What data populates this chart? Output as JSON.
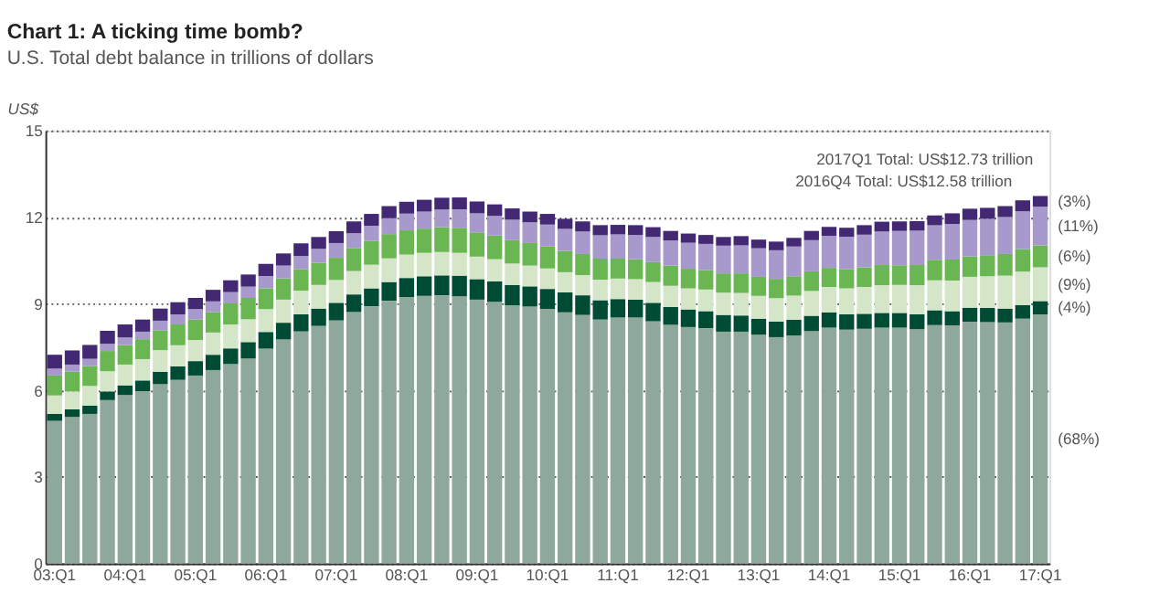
{
  "chart_data": {
    "type": "bar",
    "stacked": true,
    "title": "Chart 1: A ticking time bomb?",
    "subtitle": "U.S. Total debt balance in trillions of dollars",
    "ylabel": "US$",
    "categories": [
      "03:Q1",
      null,
      null,
      null,
      "04:Q1",
      null,
      null,
      null,
      "05:Q1",
      null,
      null,
      null,
      "06:Q1",
      null,
      null,
      null,
      "07:Q1",
      null,
      null,
      null,
      "08:Q1",
      null,
      null,
      null,
      "09:Q1",
      null,
      null,
      null,
      "10:Q1",
      null,
      null,
      null,
      "11:Q1",
      null,
      null,
      null,
      "12:Q1",
      null,
      null,
      null,
      "13:Q1",
      null,
      null,
      null,
      "14:Q1",
      null,
      null,
      null,
      "15:Q1",
      null,
      null,
      null,
      "16:Q1",
      null,
      null,
      null,
      "17:Q1"
    ],
    "series": [
      {
        "color": "#8fa89c",
        "values": [
          4.94,
          5.08,
          5.18,
          5.66,
          5.84,
          5.97,
          6.21,
          6.36,
          6.51,
          6.7,
          6.91,
          7.1,
          7.44,
          7.76,
          8.04,
          8.23,
          8.42,
          8.71,
          8.91,
          9.1,
          9.23,
          9.27,
          9.29,
          9.26,
          9.14,
          9.06,
          8.94,
          8.9,
          8.82,
          8.7,
          8.61,
          8.45,
          8.52,
          8.52,
          8.39,
          8.27,
          8.19,
          8.15,
          8.03,
          8.03,
          7.93,
          7.84,
          7.9,
          8.05,
          8.17,
          8.1,
          8.13,
          8.17,
          8.17,
          8.12,
          8.26,
          8.25,
          8.37,
          8.36,
          8.35,
          8.48,
          8.63
        ]
      },
      {
        "color": "#004b34",
        "values": [
          0.24,
          0.26,
          0.29,
          0.3,
          0.33,
          0.37,
          0.43,
          0.47,
          0.5,
          0.53,
          0.54,
          0.57,
          0.58,
          0.58,
          0.59,
          0.6,
          0.61,
          0.61,
          0.62,
          0.65,
          0.66,
          0.68,
          0.69,
          0.71,
          0.71,
          0.71,
          0.71,
          0.7,
          0.69,
          0.69,
          0.68,
          0.67,
          0.64,
          0.62,
          0.64,
          0.62,
          0.61,
          0.59,
          0.58,
          0.56,
          0.55,
          0.54,
          0.54,
          0.53,
          0.53,
          0.53,
          0.52,
          0.51,
          0.51,
          0.51,
          0.51,
          0.49,
          0.49,
          0.49,
          0.48,
          0.47,
          0.46
        ]
      },
      {
        "color": "#d5e6c8",
        "values": [
          0.64,
          0.62,
          0.68,
          0.7,
          0.72,
          0.74,
          0.75,
          0.73,
          0.73,
          0.77,
          0.83,
          0.79,
          0.79,
          0.8,
          0.82,
          0.82,
          0.79,
          0.81,
          0.82,
          0.82,
          0.81,
          0.81,
          0.81,
          0.79,
          0.78,
          0.77,
          0.74,
          0.72,
          0.71,
          0.7,
          0.7,
          0.71,
          0.71,
          0.71,
          0.72,
          0.73,
          0.73,
          0.75,
          0.77,
          0.78,
          0.79,
          0.81,
          0.84,
          0.86,
          0.88,
          0.9,
          0.93,
          0.96,
          0.97,
          1.01,
          1.04,
          1.06,
          1.07,
          1.1,
          1.14,
          1.16,
          1.17
        ]
      },
      {
        "color": "#6ab652",
        "values": [
          0.69,
          0.69,
          0.69,
          0.7,
          0.68,
          0.69,
          0.69,
          0.72,
          0.71,
          0.71,
          0.73,
          0.74,
          0.72,
          0.74,
          0.75,
          0.77,
          0.77,
          0.8,
          0.82,
          0.84,
          0.84,
          0.84,
          0.86,
          0.87,
          0.84,
          0.82,
          0.81,
          0.78,
          0.76,
          0.74,
          0.73,
          0.73,
          0.69,
          0.69,
          0.69,
          0.7,
          0.68,
          0.67,
          0.67,
          0.68,
          0.66,
          0.67,
          0.67,
          0.68,
          0.66,
          0.67,
          0.68,
          0.7,
          0.68,
          0.7,
          0.71,
          0.73,
          0.71,
          0.73,
          0.75,
          0.78,
          0.76
        ]
      },
      {
        "color": "#a899cc",
        "values": [
          0.24,
          0.24,
          0.25,
          0.25,
          0.26,
          0.26,
          0.33,
          0.35,
          0.36,
          0.37,
          0.39,
          0.39,
          0.43,
          0.44,
          0.45,
          0.48,
          0.51,
          0.51,
          0.53,
          0.55,
          0.58,
          0.59,
          0.61,
          0.64,
          0.66,
          0.68,
          0.71,
          0.72,
          0.76,
          0.76,
          0.78,
          0.81,
          0.84,
          0.84,
          0.87,
          0.87,
          0.9,
          0.91,
          0.96,
          0.97,
          0.99,
          0.99,
          1.03,
          1.08,
          1.11,
          1.12,
          1.13,
          1.16,
          1.19,
          1.19,
          1.2,
          1.23,
          1.26,
          1.26,
          1.28,
          1.31,
          1.34
        ]
      },
      {
        "color": "#432873",
        "values": [
          0.48,
          0.49,
          0.48,
          0.45,
          0.45,
          0.42,
          0.42,
          0.42,
          0.39,
          0.4,
          0.41,
          0.42,
          0.42,
          0.42,
          0.44,
          0.41,
          0.41,
          0.41,
          0.41,
          0.42,
          0.41,
          0.41,
          0.41,
          0.41,
          0.41,
          0.4,
          0.39,
          0.37,
          0.37,
          0.35,
          0.35,
          0.35,
          0.33,
          0.34,
          0.34,
          0.33,
          0.32,
          0.31,
          0.3,
          0.32,
          0.3,
          0.3,
          0.3,
          0.32,
          0.31,
          0.31,
          0.33,
          0.34,
          0.33,
          0.33,
          0.34,
          0.37,
          0.39,
          0.38,
          0.38,
          0.38,
          0.37
        ]
      }
    ],
    "ylim": [
      0,
      15
    ],
    "yticks": [
      0,
      3,
      6,
      9,
      12,
      15
    ],
    "grid": "y",
    "annotations": [
      {
        "text": "2017Q1 Total: US$12.73 trillion",
        "x": "17:Q1",
        "y": 12.73
      },
      "2016Q4 Total: US$12.58 trillion",
      "(3%)",
      "(11%)",
      "(6%)",
      "(9%)",
      "(4%)",
      "(68%)"
    ]
  }
}
